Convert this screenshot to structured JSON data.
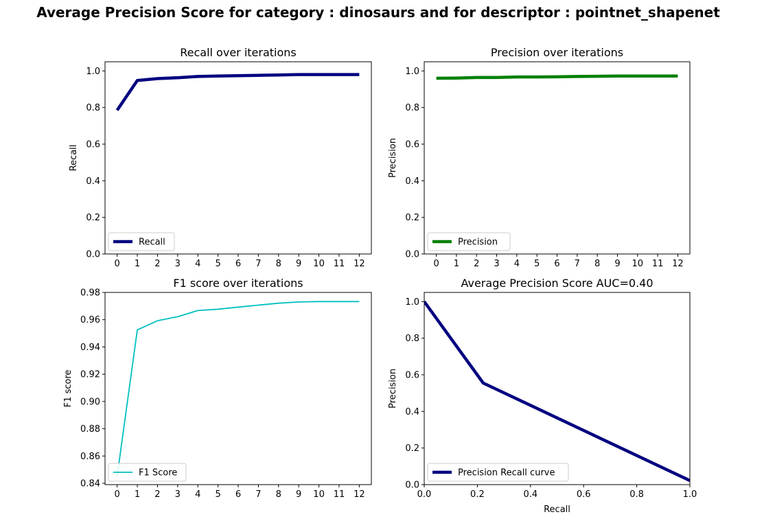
{
  "figure": {
    "suptitle": "Average Precision Score for category : dinosaurs and for descriptor : pointnet_shapenet"
  },
  "chart_data": [
    {
      "type": "line",
      "title": "Recall over iterations",
      "xlabel": "",
      "ylabel": "Recall",
      "xlim": [
        -0.6,
        12.6
      ],
      "ylim": [
        0,
        1.05
      ],
      "xticks": [
        0,
        1,
        2,
        3,
        4,
        5,
        6,
        7,
        8,
        9,
        10,
        11,
        12
      ],
      "yticks": [
        0.0,
        0.2,
        0.4,
        0.6,
        0.8,
        1.0
      ],
      "ytick_labels": [
        "0.0",
        "0.2",
        "0.4",
        "0.6",
        "0.8",
        "1.0"
      ],
      "grid": false,
      "legend_position": "lower-left",
      "series": [
        {
          "name": "Recall",
          "color": "#000080",
          "x": [
            0,
            1,
            2,
            3,
            4,
            5,
            6,
            7,
            8,
            9,
            10,
            11,
            12
          ],
          "y": [
            0.785,
            0.948,
            0.958,
            0.963,
            0.97,
            0.972,
            0.974,
            0.976,
            0.978,
            0.98,
            0.98,
            0.98,
            0.98
          ]
        }
      ]
    },
    {
      "type": "line",
      "title": "Precision over iterations",
      "xlabel": "",
      "ylabel": "Precision",
      "xlim": [
        -0.6,
        12.6
      ],
      "ylim": [
        0,
        1.05
      ],
      "xticks": [
        0,
        1,
        2,
        3,
        4,
        5,
        6,
        7,
        8,
        9,
        10,
        11,
        12
      ],
      "yticks": [
        0.0,
        0.2,
        0.4,
        0.6,
        0.8,
        1.0
      ],
      "ytick_labels": [
        "0.0",
        "0.2",
        "0.4",
        "0.6",
        "0.8",
        "1.0"
      ],
      "grid": false,
      "legend_position": "lower-left",
      "series": [
        {
          "name": "Precision",
          "color": "#008000",
          "x": [
            0,
            1,
            2,
            3,
            4,
            5,
            6,
            7,
            8,
            9,
            10,
            11,
            12
          ],
          "y": [
            0.96,
            0.961,
            0.964,
            0.964,
            0.967,
            0.967,
            0.968,
            0.97,
            0.971,
            0.972,
            0.972,
            0.972,
            0.972
          ]
        }
      ]
    },
    {
      "type": "line",
      "title": "F1 score over iterations",
      "xlabel": "",
      "ylabel": "F1 score",
      "xlim": [
        -0.6,
        12.6
      ],
      "ylim": [
        0.839,
        0.98
      ],
      "xticks": [
        0,
        1,
        2,
        3,
        4,
        5,
        6,
        7,
        8,
        9,
        10,
        11,
        12
      ],
      "yticks": [
        0.84,
        0.86,
        0.88,
        0.9,
        0.92,
        0.94,
        0.96,
        0.98
      ],
      "ytick_labels": [
        "0.84",
        "0.86",
        "0.88",
        "0.90",
        "0.92",
        "0.94",
        "0.96",
        "0.98"
      ],
      "grid": false,
      "legend_position": "lower-left",
      "series": [
        {
          "name": "F1 Score",
          "color": "#00bfbf",
          "x": [
            0,
            1,
            2,
            3,
            4,
            5,
            6,
            7,
            8,
            9,
            10,
            11,
            12
          ],
          "y": [
            0.845,
            0.9525,
            0.9592,
            0.9622,
            0.9667,
            0.9677,
            0.9692,
            0.9707,
            0.9721,
            0.973,
            0.9733,
            0.9733,
            0.9733
          ]
        }
      ]
    },
    {
      "type": "line",
      "title": "Average Precision Score AUC=0.40",
      "xlabel": "Recall",
      "ylabel": "Precision",
      "xlim": [
        0,
        1
      ],
      "ylim": [
        0,
        1.05
      ],
      "xticks": [
        0.0,
        0.2,
        0.4,
        0.6,
        0.8,
        1.0
      ],
      "xtick_labels": [
        "0.0",
        "0.2",
        "0.4",
        "0.6",
        "0.8",
        "1.0"
      ],
      "yticks": [
        0.0,
        0.2,
        0.4,
        0.6,
        0.8,
        1.0
      ],
      "ytick_labels": [
        "0.0",
        "0.2",
        "0.4",
        "0.6",
        "0.8",
        "1.0"
      ],
      "grid": false,
      "legend_position": "lower-left",
      "series": [
        {
          "name": "Precision Recall curve",
          "color": "#000080",
          "x": [
            0.0,
            0.222,
            1.0
          ],
          "y": [
            1.0,
            0.555,
            0.022
          ]
        }
      ]
    }
  ]
}
